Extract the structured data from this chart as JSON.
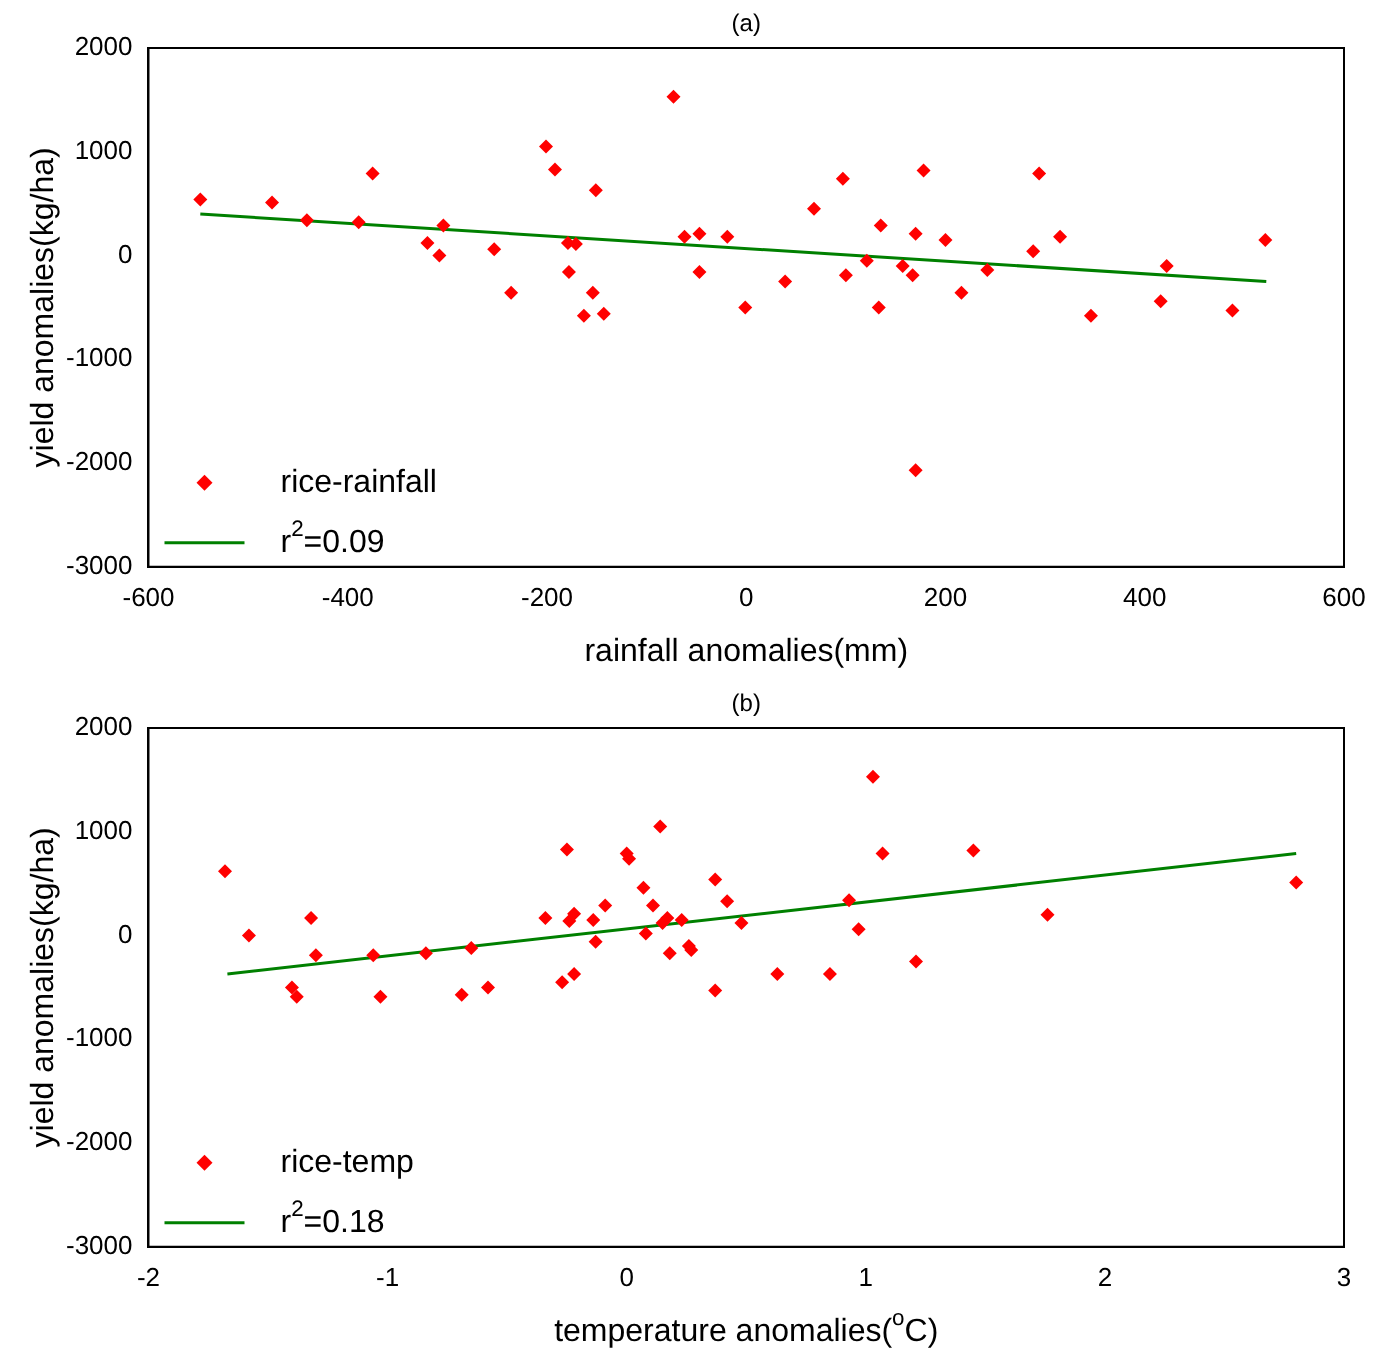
{
  "chart_data": [
    {
      "type": "scatter",
      "title": "(a)",
      "xlabel": "rainfall anomalies(mm)",
      "ylabel": "yield anomalies(kg/ha)",
      "xlim": [
        -600,
        600
      ],
      "xticks": [
        -600,
        -400,
        -200,
        0,
        200,
        400,
        600
      ],
      "ylim": [
        -3000,
        2000
      ],
      "yticks": [
        -3000,
        -2000,
        -1000,
        0,
        1000,
        2000
      ],
      "legend": "bottom left",
      "series": [
        {
          "name": "rice-rainfall",
          "type": "scatter",
          "marker": "diamond",
          "color": "#ff0000",
          "x": [
            -548,
            -476,
            -441,
            -389,
            -375,
            -320,
            -308,
            -304,
            -253,
            -236,
            -201,
            -192,
            -151,
            -179,
            -171,
            -178,
            -154,
            -163,
            -143,
            -73,
            -62,
            -47,
            -47,
            -19,
            -1,
            39,
            68,
            97,
            100,
            121,
            135,
            133,
            157,
            167,
            170,
            178,
            170,
            200,
            216,
            242,
            288,
            294,
            315,
            346,
            416,
            422,
            488,
            521
          ],
          "values": [
            540,
            510,
            340,
            320,
            790,
            120,
            0,
            290,
            60,
            -360,
            1050,
            830,
            630,
            120,
            110,
            -160,
            -360,
            -580,
            -560,
            1530,
            180,
            210,
            -160,
            180,
            -500,
            -250,
            450,
            740,
            -190,
            -50,
            290,
            -500,
            -100,
            -190,
            210,
            820,
            -2070,
            150,
            -360,
            -140,
            40,
            790,
            180,
            -580,
            -440,
            -100,
            -530,
            150
          ]
        },
        {
          "name": "r$^{2}$=0.09",
          "type": "line",
          "marker": "none",
          "color": "#008000",
          "x": [
            -548,
            522
          ],
          "values": [
            400,
            -250
          ]
        }
      ]
    },
    {
      "type": "scatter",
      "title": "(b)",
      "xlabel": "temperature anomalies($^{o}$C)",
      "ylabel": "yield anomalies(kg/ha)",
      "xlim": [
        -2,
        3
      ],
      "xticks": [
        -2,
        -1,
        0,
        1,
        2,
        3
      ],
      "ylim": [
        -3000,
        2000
      ],
      "yticks": [
        -3000,
        -2000,
        -1000,
        0,
        1000,
        2000
      ],
      "legend": "bottom left",
      "series": [
        {
          "name": "rice-temp",
          "type": "scatter",
          "marker": "diamond",
          "color": "#ff0000",
          "x": [
            -1.68,
            -1.58,
            -1.32,
            -1.3,
            -1.4,
            -1.38,
            -1.06,
            -1.03,
            -0.84,
            -0.69,
            -0.65,
            -0.58,
            -0.34,
            -0.25,
            -0.27,
            -0.24,
            -0.22,
            -0.22,
            -0.14,
            -0.13,
            -0.09,
            0.0,
            0.01,
            0.07,
            0.08,
            0.11,
            0.14,
            0.17,
            0.15,
            0.18,
            0.23,
            0.26,
            0.27,
            0.37,
            0.37,
            0.42,
            0.48,
            0.63,
            0.85,
            0.93,
            0.97,
            1.03,
            1.07,
            1.21,
            1.45,
            1.76,
            2.8
          ],
          "values": [
            620,
            0,
            170,
            -190,
            -500,
            -590,
            -190,
            -590,
            -170,
            -570,
            -120,
            -500,
            170,
            830,
            -450,
            140,
            210,
            -370,
            150,
            -60,
            290,
            790,
            740,
            460,
            20,
            290,
            1050,
            170,
            120,
            -170,
            150,
            -100,
            -140,
            540,
            -530,
            330,
            120,
            -370,
            -370,
            340,
            60,
            1530,
            790,
            -250,
            820,
            200,
            510
          ]
        },
        {
          "name": "r$^{2}$=0.18",
          "type": "line",
          "marker": "none",
          "color": "#008000",
          "x": [
            -1.67,
            2.8
          ],
          "values": [
            -370,
            790
          ]
        }
      ]
    }
  ]
}
